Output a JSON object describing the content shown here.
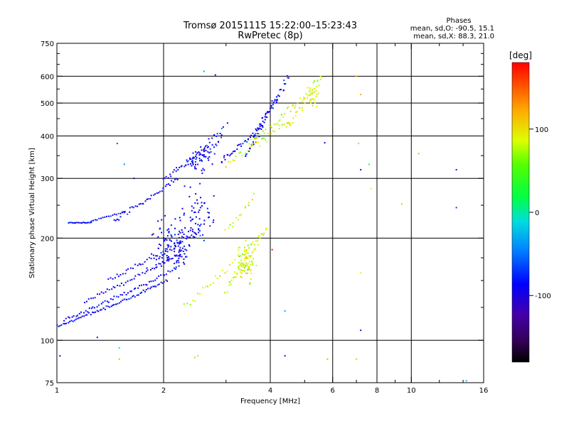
{
  "chart_data": {
    "type": "scatter",
    "title": "Tromsø 20151115 15:22:00–15:23:43",
    "subtitle": "RwPretec (8p)",
    "xlabel": "Frequency [MHz]",
    "ylabel": "Stationary phase Virtual Height [km]",
    "x_scale": "log",
    "y_scale": "log",
    "xlim": [
      1,
      16
    ],
    "ylim": [
      75,
      750
    ],
    "x_ticks": [
      {
        "value": 1,
        "label": "1"
      },
      {
        "value": 2,
        "label": "2"
      },
      {
        "value": 4,
        "label": "4"
      },
      {
        "value": 6,
        "label": "6"
      },
      {
        "value": 8,
        "label": "8"
      },
      {
        "value": 10,
        "label": "10"
      },
      {
        "value": 16,
        "label": "16"
      }
    ],
    "x_minor_ticks": [
      3,
      5,
      7,
      9,
      12,
      14
    ],
    "x_grid_lines": [
      2,
      4,
      6,
      8,
      10
    ],
    "y_ticks": [
      {
        "value": 75,
        "label": "75"
      },
      {
        "value": 100,
        "label": "100"
      },
      {
        "value": 200,
        "label": "200"
      },
      {
        "value": 300,
        "label": "300"
      },
      {
        "value": 400,
        "label": "400"
      },
      {
        "value": 500,
        "label": "500"
      },
      {
        "value": 600,
        "label": "600"
      },
      {
        "value": 750,
        "label": "750"
      }
    ],
    "y_minor_ticks": [
      125,
      150,
      175,
      250,
      350,
      450,
      550,
      650,
      700
    ],
    "y_grid_lines": [
      100,
      200,
      300,
      400,
      500,
      600
    ],
    "grid": true,
    "phase_info": {
      "header": "Phases",
      "line1": "mean, sd,O: -90.5, 15.1",
      "line2": "mean, sd,X:  88.3, 21.0"
    },
    "colorbar": {
      "unit_label": "[deg]",
      "range": [
        -180,
        180
      ],
      "ticks": [
        {
          "value": 100,
          "label": "100"
        },
        {
          "value": 0,
          "label": "0"
        },
        {
          "value": -100,
          "label": "-100"
        }
      ]
    },
    "traces": [
      {
        "mode": "O",
        "f_start": 1.0,
        "f_end": 2.05,
        "h_start": 110,
        "h_end": 150,
        "curve": 0.12,
        "n": 70,
        "spread": 0.015
      },
      {
        "mode": "O",
        "f_start": 1.05,
        "f_end": 2.2,
        "h_start": 115,
        "h_end": 165,
        "curve": 0.1,
        "n": 60,
        "spread": 0.02
      },
      {
        "mode": "O",
        "f_start": 1.2,
        "f_end": 2.3,
        "h_start": 130,
        "h_end": 185,
        "curve": 0.1,
        "n": 50,
        "spread": 0.02
      },
      {
        "mode": "O",
        "f_start": 1.4,
        "f_end": 2.5,
        "h_start": 150,
        "h_end": 210,
        "curve": 0.1,
        "n": 45,
        "spread": 0.025
      },
      {
        "mode": "O",
        "f_start": 1.08,
        "f_end": 1.25,
        "h_start": 222,
        "h_end": 222,
        "curve": 0.0,
        "n": 18,
        "spread": 0.006
      },
      {
        "mode": "O",
        "f_start": 1.25,
        "f_end": 1.55,
        "h_start": 225,
        "h_end": 238,
        "curve": 0.02,
        "n": 18,
        "spread": 0.008
      },
      {
        "mode": "O",
        "f_start": 1.45,
        "f_end": 2.2,
        "h_start": 225,
        "h_end": 300,
        "curve": 0.05,
        "n": 40,
        "spread": 0.025
      },
      {
        "mode": "O",
        "f_start": 2.0,
        "f_end": 2.9,
        "h_start": 300,
        "h_end": 390,
        "curve": 0.05,
        "n": 40,
        "spread": 0.03
      },
      {
        "mode": "O",
        "f_start": 2.9,
        "f_end": 3.8,
        "h_start": 335,
        "h_end": 430,
        "curve": 0.05,
        "n": 35,
        "spread": 0.03
      },
      {
        "mode": "O",
        "f_start": 3.6,
        "f_end": 4.5,
        "h_start": 400,
        "h_end": 600,
        "curve": 0.05,
        "n": 40,
        "spread": 0.04
      },
      {
        "mode": "O",
        "f_start": 3.4,
        "f_end": 4.2,
        "h_start": 350,
        "h_end": 520,
        "curve": 0.05,
        "n": 30,
        "spread": 0.04
      },
      {
        "mode": "O",
        "f_start": 2.3,
        "f_end": 3.0,
        "h_start": 330,
        "h_end": 430,
        "curve": 0.05,
        "n": 25,
        "spread": 0.04
      },
      {
        "mode": "X",
        "f_start": 2.3,
        "f_end": 3.7,
        "h_start": 125,
        "h_end": 200,
        "curve": 0.05,
        "n": 30,
        "spread": 0.04
      },
      {
        "mode": "X",
        "f_start": 3.0,
        "f_end": 3.9,
        "h_start": 140,
        "h_end": 215,
        "curve": 0.05,
        "n": 35,
        "spread": 0.04
      },
      {
        "mode": "X",
        "f_start": 3.0,
        "f_end": 3.6,
        "h_start": 210,
        "h_end": 270,
        "curve": 0.02,
        "n": 15,
        "spread": 0.05
      },
      {
        "mode": "X",
        "f_start": 3.0,
        "f_end": 4.5,
        "h_start": 330,
        "h_end": 440,
        "curve": 0.05,
        "n": 30,
        "spread": 0.04
      },
      {
        "mode": "X",
        "f_start": 3.5,
        "f_end": 5.0,
        "h_start": 380,
        "h_end": 520,
        "curve": 0.05,
        "n": 35,
        "spread": 0.04
      },
      {
        "mode": "X",
        "f_start": 4.5,
        "f_end": 5.6,
        "h_start": 430,
        "h_end": 610,
        "curve": 0.05,
        "n": 30,
        "spread": 0.05
      }
    ],
    "clusters": [
      {
        "mode": "O",
        "f_center": 2.1,
        "h_center": 190,
        "f_spread": 0.09,
        "h_spread": 0.12,
        "n": 110
      },
      {
        "mode": "O",
        "f_center": 2.45,
        "h_center": 230,
        "f_spread": 0.08,
        "h_spread": 0.14,
        "n": 70
      },
      {
        "mode": "O",
        "f_center": 2.6,
        "h_center": 340,
        "f_spread": 0.06,
        "h_spread": 0.07,
        "n": 40
      },
      {
        "mode": "X",
        "f_center": 3.4,
        "h_center": 170,
        "f_spread": 0.05,
        "h_spread": 0.09,
        "n": 70
      },
      {
        "mode": "X",
        "f_center": 5.3,
        "h_center": 520,
        "f_spread": 0.03,
        "h_spread": 0.05,
        "n": 25
      }
    ],
    "scattered_points": [
      {
        "x": 1.02,
        "y": 90,
        "phase": -100
      },
      {
        "x": 1.5,
        "y": 95,
        "phase": 10
      },
      {
        "x": 1.5,
        "y": 88,
        "phase": 120
      },
      {
        "x": 2.45,
        "y": 89,
        "phase": 110
      },
      {
        "x": 2.5,
        "y": 90,
        "phase": 105
      },
      {
        "x": 4.4,
        "y": 90,
        "phase": -80
      },
      {
        "x": 5.8,
        "y": 88,
        "phase": 120
      },
      {
        "x": 7.0,
        "y": 88,
        "phase": 110
      },
      {
        "x": 7.2,
        "y": 107,
        "phase": -100
      },
      {
        "x": 7.2,
        "y": 158,
        "phase": 90
      },
      {
        "x": 7.0,
        "y": 600,
        "phase": 120
      },
      {
        "x": 7.2,
        "y": 530,
        "phase": 120
      },
      {
        "x": 7.2,
        "y": 318,
        "phase": -100
      },
      {
        "x": 7.1,
        "y": 380,
        "phase": 110
      },
      {
        "x": 7.7,
        "y": 280,
        "phase": 90
      },
      {
        "x": 7.6,
        "y": 330,
        "phase": 30
      },
      {
        "x": 9.4,
        "y": 252,
        "phase": 110
      },
      {
        "x": 10.5,
        "y": 355,
        "phase": 120
      },
      {
        "x": 13.4,
        "y": 318,
        "phase": -80
      },
      {
        "x": 13.4,
        "y": 246,
        "phase": -70
      },
      {
        "x": 14.3,
        "y": 76,
        "phase": -20
      },
      {
        "x": 1.48,
        "y": 380,
        "phase": -60
      },
      {
        "x": 1.55,
        "y": 330,
        "phase": -40
      },
      {
        "x": 2.8,
        "y": 605,
        "phase": -90
      },
      {
        "x": 2.6,
        "y": 620,
        "phase": -30
      },
      {
        "x": 1.65,
        "y": 300,
        "phase": -90
      },
      {
        "x": 4.4,
        "y": 122,
        "phase": -30
      },
      {
        "x": 4.05,
        "y": 185,
        "phase": 170
      },
      {
        "x": 5.7,
        "y": 382,
        "phase": -100
      },
      {
        "x": 1.3,
        "y": 102,
        "phase": -100
      }
    ]
  }
}
